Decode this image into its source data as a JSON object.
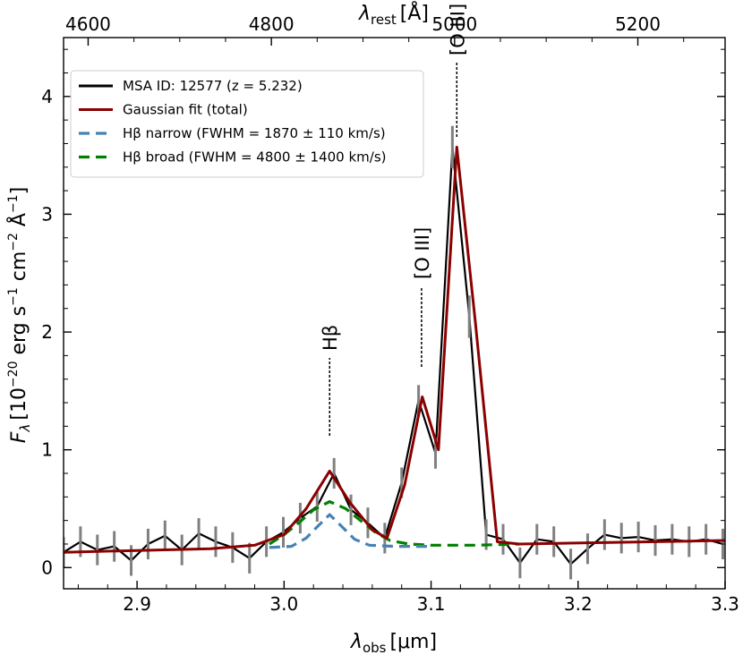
{
  "chart_data": {
    "type": "line",
    "xlabel_main": "λ",
    "xlabel_sub": "obs",
    "xlabel_unit": "[μm]",
    "top_xlabel_main": "λ",
    "top_xlabel_sub": "rest",
    "top_xlabel_unit": "[Å]",
    "ylabel": "F_λ [10^−20 erg s^−1 cm^−2 Å^−1]",
    "ylabel_pre": "F",
    "ylabel_sub": "λ",
    "ylabel_unit": "[10",
    "ylabel_exp1": "−20",
    "ylabel_mid1": " erg s",
    "ylabel_exp2": "−1",
    "ylabel_mid2": " cm",
    "ylabel_exp3": "−2",
    "ylabel_mid3": " Å",
    "ylabel_exp4": "−1",
    "ylabel_end": "]",
    "xlim": [
      2.85,
      3.3
    ],
    "ylim": [
      -0.18,
      4.5
    ],
    "xticks": [
      2.9,
      3.0,
      3.1,
      3.2,
      3.3
    ],
    "xtick_labels": [
      "2.9",
      "3.0",
      "3.1",
      "3.2",
      "3.3"
    ],
    "yticks": [
      0,
      1,
      2,
      3,
      4
    ],
    "ytick_labels": [
      "0",
      "1",
      "2",
      "3",
      "4"
    ],
    "top_xticks": [
      4600,
      4800,
      5000,
      5200
    ],
    "top_xtick_labels": [
      "4600",
      "4800",
      "5000",
      "5200"
    ],
    "redshift": 5.232,
    "legend": {
      "position": "upper-left",
      "entries": [
        {
          "label": "MSA ID: 12577 (z = 5.232)",
          "color": "#000000",
          "style": "solid"
        },
        {
          "label": "Gaussian fit (total)",
          "color": "#8b0000",
          "style": "solid"
        },
        {
          "label": "Hβ narrow (FWHM = 1870 ± 110 km/s)",
          "color": "#4682b4",
          "style": "dashed"
        },
        {
          "label": "Hβ broad (FWHM = 4800 ± 1400 km/s)",
          "color": "#008000",
          "style": "dashed"
        }
      ]
    },
    "annotations": [
      {
        "text": "Hβ",
        "x": 3.031
      },
      {
        "text": "[O III]",
        "x": 3.0935
      },
      {
        "text": "[O III]",
        "x": 3.1175
      }
    ],
    "series": [
      {
        "name": "MSA ID: 12577 (z = 5.232)",
        "x": [
          2.85,
          2.8615,
          2.873,
          2.8845,
          2.896,
          2.9075,
          2.919,
          2.9305,
          2.942,
          2.9535,
          2.965,
          2.9765,
          2.988,
          2.9995,
          3.011,
          3.0225,
          3.034,
          3.0455,
          3.057,
          3.0685,
          3.08,
          3.0915,
          3.103,
          3.1145,
          3.126,
          3.1375,
          3.149,
          3.1605,
          3.172,
          3.1835,
          3.195,
          3.2065,
          3.218,
          3.2295,
          3.241,
          3.2525,
          3.264,
          3.2755,
          3.287,
          3.2985
        ],
        "y": [
          0.13,
          0.22,
          0.15,
          0.18,
          0.06,
          0.2,
          0.27,
          0.15,
          0.29,
          0.22,
          0.17,
          0.08,
          0.22,
          0.3,
          0.42,
          0.52,
          0.8,
          0.49,
          0.38,
          0.25,
          0.72,
          1.42,
          0.97,
          3.57,
          2.13,
          0.28,
          0.24,
          0.04,
          0.24,
          0.22,
          0.03,
          0.16,
          0.28,
          0.25,
          0.26,
          0.23,
          0.24,
          0.22,
          0.24,
          0.2
        ],
        "err": [
          0.13,
          0.13,
          0.13,
          0.13,
          0.13,
          0.13,
          0.13,
          0.13,
          0.13,
          0.13,
          0.13,
          0.13,
          0.13,
          0.13,
          0.13,
          0.13,
          0.13,
          0.13,
          0.13,
          0.13,
          0.13,
          0.13,
          0.13,
          0.18,
          0.18,
          0.13,
          0.13,
          0.13,
          0.13,
          0.13,
          0.13,
          0.13,
          0.13,
          0.13,
          0.13,
          0.13,
          0.13,
          0.13,
          0.13,
          0.13
        ]
      },
      {
        "name": "Gaussian fit (total)",
        "x": [
          2.85,
          2.95,
          2.98,
          3.0,
          3.015,
          3.031,
          3.045,
          3.06,
          3.07,
          3.082,
          3.094,
          3.105,
          3.1175,
          3.13,
          3.145,
          3.16,
          3.3
        ],
        "y": [
          0.13,
          0.16,
          0.19,
          0.28,
          0.5,
          0.82,
          0.55,
          0.32,
          0.25,
          0.7,
          1.45,
          1.0,
          3.57,
          2.1,
          0.22,
          0.2,
          0.23
        ]
      },
      {
        "name": "Hβ narrow (FWHM = 1870 ± 110 km/s)",
        "x": [
          2.99,
          3.005,
          3.015,
          3.022,
          3.031,
          3.04,
          3.048,
          3.058,
          3.075,
          3.1
        ],
        "y": [
          0.17,
          0.18,
          0.25,
          0.34,
          0.45,
          0.34,
          0.24,
          0.19,
          0.18,
          0.18
        ]
      },
      {
        "name": "Hβ broad (FWHM = 4800 ± 1400 km/s)",
        "x": [
          2.99,
          3.0,
          3.01,
          3.02,
          3.031,
          3.042,
          3.052,
          3.062,
          3.072,
          3.085,
          3.1,
          3.13,
          3.16
        ],
        "y": [
          0.2,
          0.28,
          0.38,
          0.49,
          0.56,
          0.5,
          0.4,
          0.3,
          0.23,
          0.2,
          0.19,
          0.19,
          0.2
        ]
      }
    ]
  }
}
